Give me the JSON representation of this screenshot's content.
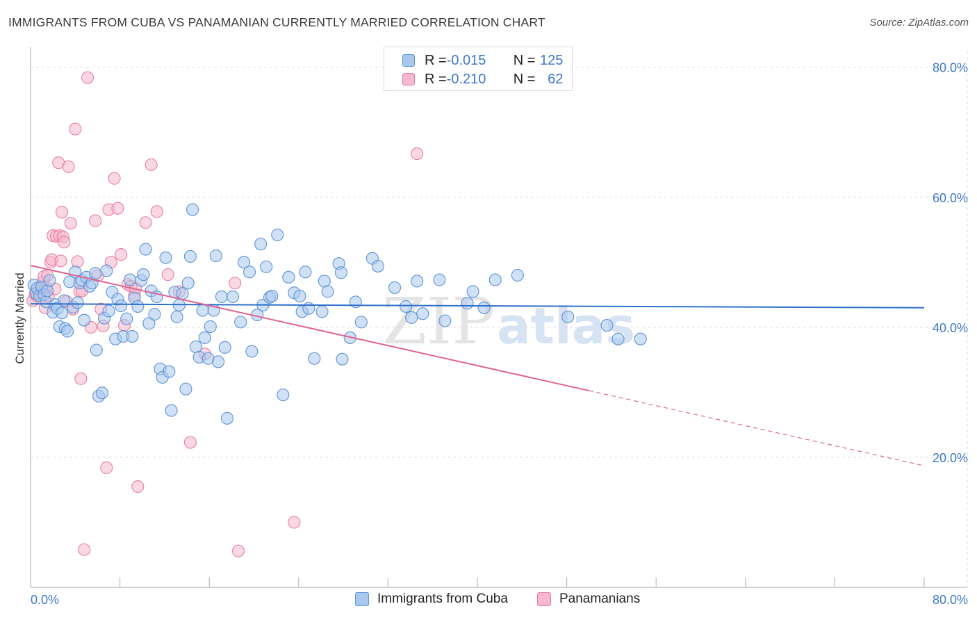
{
  "title": "IMMIGRANTS FROM CUBA VS PANAMANIAN CURRENTLY MARRIED CORRELATION CHART",
  "source": "Source: ZipAtlas.com",
  "watermark": {
    "zip": "ZIP",
    "atlas": "atlas"
  },
  "legend": {
    "rows": [
      {
        "r_label": "R = ",
        "r_value": "-0.015",
        "n_label": "N = ",
        "n_value": "125"
      },
      {
        "r_label": "R = ",
        "r_value": "-0.210",
        "n_label": "N = ",
        "n_value": "62"
      }
    ]
  },
  "bottom_legend": [
    "Immigrants from Cuba",
    "Panamanians"
  ],
  "colors": {
    "blue_fill": "#a9c8ef",
    "blue_stroke": "#5b93d6",
    "blue_line": "#2e6fc9",
    "pink_fill": "#f5b8cc",
    "pink_stroke": "#e87fa2",
    "pink_line": "#e0648f",
    "grid": "#dddddd",
    "tick": "#3c78c8"
  },
  "chart_data": {
    "type": "scatter",
    "title": "IMMIGRANTS FROM CUBA VS PANAMANIAN CURRENTLY MARRIED CORRELATION CHART",
    "xlabel": "",
    "ylabel": "Currently Married",
    "xlim": [
      0,
      80
    ],
    "ylim": [
      0,
      82
    ],
    "x_tick_labels": [
      "0.0%",
      "80.0%"
    ],
    "y_ticks": [
      20,
      40,
      60,
      80
    ],
    "y_tick_labels": [
      "20.0%",
      "40.0%",
      "60.0%",
      "80.0%"
    ],
    "grid": true,
    "series": [
      {
        "name": "Immigrants from Cuba",
        "R": -0.015,
        "N": 125,
        "trend": {
          "x": [
            0,
            80
          ],
          "y": [
            43.6,
            43.0
          ],
          "dashed_from": null
        },
        "points": [
          [
            0.3,
            46.5
          ],
          [
            0.5,
            45.2
          ],
          [
            0.6,
            46.0
          ],
          [
            0.8,
            44.8
          ],
          [
            1.0,
            46.2
          ],
          [
            1.2,
            45.0
          ],
          [
            1.4,
            43.9
          ],
          [
            1.5,
            45.6
          ],
          [
            1.7,
            47.2
          ],
          [
            2.0,
            42.3
          ],
          [
            2.2,
            43.5
          ],
          [
            2.4,
            42.9
          ],
          [
            2.6,
            40.1
          ],
          [
            2.8,
            42.2
          ],
          [
            3.0,
            44.1
          ],
          [
            3.1,
            39.8
          ],
          [
            3.3,
            39.4
          ],
          [
            3.5,
            47.0
          ],
          [
            3.8,
            43.1
          ],
          [
            4.0,
            48.5
          ],
          [
            4.2,
            43.8
          ],
          [
            4.4,
            46.8
          ],
          [
            4.6,
            47.2
          ],
          [
            4.8,
            41.1
          ],
          [
            5.0,
            47.7
          ],
          [
            5.3,
            46.3
          ],
          [
            5.5,
            46.8
          ],
          [
            5.8,
            48.3
          ],
          [
            5.9,
            36.5
          ],
          [
            6.1,
            29.4
          ],
          [
            6.4,
            29.9
          ],
          [
            6.6,
            41.4
          ],
          [
            6.8,
            48.7
          ],
          [
            7.0,
            42.5
          ],
          [
            7.3,
            45.4
          ],
          [
            7.6,
            38.2
          ],
          [
            7.8,
            44.3
          ],
          [
            8.1,
            43.3
          ],
          [
            8.3,
            38.6
          ],
          [
            8.6,
            41.3
          ],
          [
            8.9,
            47.3
          ],
          [
            9.1,
            38.6
          ],
          [
            9.3,
            44.5
          ],
          [
            9.6,
            43.2
          ],
          [
            9.9,
            47.2
          ],
          [
            10.1,
            48.1
          ],
          [
            10.3,
            52.0
          ],
          [
            10.6,
            40.6
          ],
          [
            10.8,
            45.6
          ],
          [
            11.1,
            42.0
          ],
          [
            11.3,
            44.7
          ],
          [
            11.6,
            33.6
          ],
          [
            11.8,
            32.3
          ],
          [
            12.1,
            50.7
          ],
          [
            12.4,
            33.2
          ],
          [
            12.6,
            27.2
          ],
          [
            12.9,
            45.4
          ],
          [
            13.1,
            41.6
          ],
          [
            13.3,
            43.4
          ],
          [
            13.6,
            45.2
          ],
          [
            13.9,
            30.5
          ],
          [
            14.1,
            46.8
          ],
          [
            14.3,
            50.9
          ],
          [
            14.5,
            58.1
          ],
          [
            14.8,
            37.0
          ],
          [
            15.1,
            35.4
          ],
          [
            15.4,
            42.6
          ],
          [
            15.6,
            38.4
          ],
          [
            15.9,
            35.2
          ],
          [
            16.1,
            40.1
          ],
          [
            16.4,
            42.6
          ],
          [
            16.6,
            51.0
          ],
          [
            16.8,
            34.7
          ],
          [
            17.1,
            44.7
          ],
          [
            17.4,
            36.9
          ],
          [
            17.6,
            26.0
          ],
          [
            18.1,
            44.7
          ],
          [
            18.8,
            40.8
          ],
          [
            19.1,
            50.0
          ],
          [
            19.6,
            48.5
          ],
          [
            19.8,
            36.3
          ],
          [
            20.3,
            41.9
          ],
          [
            20.6,
            52.8
          ],
          [
            20.8,
            43.4
          ],
          [
            21.1,
            49.3
          ],
          [
            21.4,
            44.6
          ],
          [
            22.1,
            54.2
          ],
          [
            22.6,
            29.6
          ],
          [
            23.1,
            47.7
          ],
          [
            23.6,
            45.3
          ],
          [
            24.1,
            44.8
          ],
          [
            24.3,
            42.4
          ],
          [
            24.6,
            48.5
          ],
          [
            24.9,
            42.9
          ],
          [
            25.4,
            35.2
          ],
          [
            26.3,
            47.1
          ],
          [
            26.6,
            45.5
          ],
          [
            27.6,
            49.8
          ],
          [
            27.9,
            35.1
          ],
          [
            27.8,
            48.4
          ],
          [
            28.6,
            38.4
          ],
          [
            29.1,
            43.9
          ],
          [
            29.6,
            40.8
          ],
          [
            30.6,
            50.6
          ],
          [
            31.1,
            49.4
          ],
          [
            32.6,
            46.1
          ],
          [
            33.6,
            43.2
          ],
          [
            34.1,
            41.5
          ],
          [
            34.6,
            47.1
          ],
          [
            35.1,
            42.1
          ],
          [
            36.6,
            47.3
          ],
          [
            37.1,
            41.0
          ],
          [
            39.1,
            43.7
          ],
          [
            39.6,
            45.5
          ],
          [
            40.6,
            43.0
          ],
          [
            41.6,
            47.3
          ],
          [
            43.6,
            48.0
          ],
          [
            48.1,
            41.6
          ],
          [
            51.6,
            40.3
          ],
          [
            52.6,
            38.2
          ],
          [
            54.6,
            38.2
          ],
          [
            21.6,
            44.8
          ],
          [
            26.1,
            42.4
          ]
        ]
      },
      {
        "name": "Panamanians",
        "R": -0.21,
        "N": 62,
        "trend": {
          "x": [
            0,
            80
          ],
          "y": [
            49.5,
            18.7
          ],
          "dashed_from": 50
        },
        "points": [
          [
            0.2,
            44.1
          ],
          [
            0.4,
            45.1
          ],
          [
            0.6,
            44.8
          ],
          [
            0.8,
            46.0
          ],
          [
            1.0,
            45.6
          ],
          [
            1.1,
            47.0
          ],
          [
            1.2,
            47.8
          ],
          [
            1.3,
            43.0
          ],
          [
            1.5,
            48.0
          ],
          [
            1.6,
            44.8
          ],
          [
            1.8,
            50.0
          ],
          [
            1.9,
            50.4
          ],
          [
            2.0,
            54.1
          ],
          [
            2.2,
            45.9
          ],
          [
            2.3,
            54.0
          ],
          [
            2.5,
            65.3
          ],
          [
            2.6,
            54.1
          ],
          [
            2.7,
            50.2
          ],
          [
            2.8,
            57.7
          ],
          [
            2.9,
            53.9
          ],
          [
            3.0,
            53.1
          ],
          [
            3.2,
            44.0
          ],
          [
            3.4,
            64.7
          ],
          [
            3.6,
            56.0
          ],
          [
            3.8,
            42.8
          ],
          [
            4.0,
            70.5
          ],
          [
            4.2,
            50.1
          ],
          [
            4.4,
            45.5
          ],
          [
            4.5,
            32.1
          ],
          [
            4.8,
            5.8
          ],
          [
            5.1,
            78.4
          ],
          [
            5.4,
            40.0
          ],
          [
            5.8,
            56.4
          ],
          [
            6.0,
            47.9
          ],
          [
            6.3,
            42.8
          ],
          [
            6.5,
            40.2
          ],
          [
            6.8,
            18.4
          ],
          [
            7.0,
            58.1
          ],
          [
            7.2,
            50.0
          ],
          [
            7.5,
            62.9
          ],
          [
            7.8,
            58.3
          ],
          [
            8.1,
            51.2
          ],
          [
            8.4,
            40.3
          ],
          [
            8.7,
            46.6
          ],
          [
            9.0,
            46.3
          ],
          [
            9.3,
            44.9
          ],
          [
            9.6,
            15.5
          ],
          [
            10.3,
            56.1
          ],
          [
            10.8,
            65.0
          ],
          [
            11.3,
            57.8
          ],
          [
            12.3,
            48.1
          ],
          [
            13.3,
            45.5
          ],
          [
            14.3,
            22.3
          ],
          [
            15.6,
            35.9
          ],
          [
            18.3,
            46.8
          ],
          [
            18.6,
            5.6
          ],
          [
            23.6,
            10.0
          ],
          [
            34.6,
            66.7
          ],
          [
            4.6,
            45.6
          ],
          [
            1.4,
            46.1
          ],
          [
            0.9,
            44.9
          ],
          [
            9.4,
            46.0
          ]
        ]
      }
    ]
  }
}
